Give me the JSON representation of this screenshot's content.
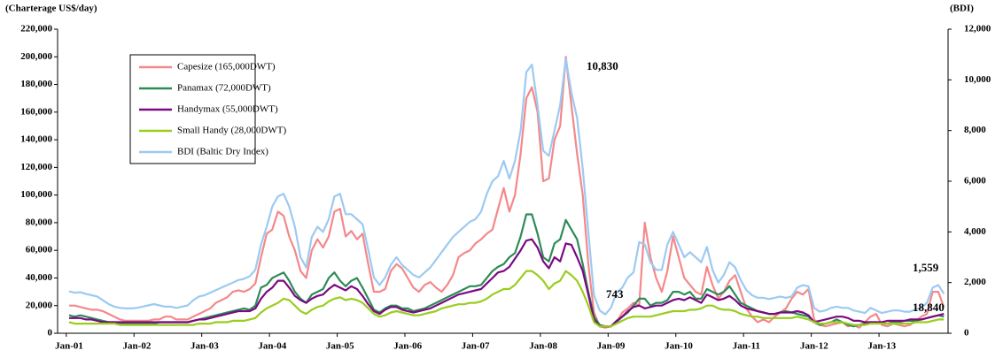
{
  "chart_data": {
    "type": "line",
    "y_axis_label": "(Charterage US$/day)",
    "y2_axis_label": "(BDI)",
    "categories": [
      "Jan-01",
      null,
      null,
      null,
      null,
      null,
      null,
      null,
      null,
      null,
      null,
      null,
      "Jan-02",
      null,
      null,
      null,
      null,
      null,
      null,
      null,
      null,
      null,
      null,
      null,
      "Jan-03",
      null,
      null,
      null,
      null,
      null,
      null,
      null,
      null,
      null,
      null,
      null,
      "Jan-04",
      null,
      null,
      null,
      null,
      null,
      null,
      null,
      null,
      null,
      null,
      null,
      "Jan-05",
      null,
      null,
      null,
      null,
      null,
      null,
      null,
      null,
      null,
      null,
      null,
      "Jan-06",
      null,
      null,
      null,
      null,
      null,
      null,
      null,
      null,
      null,
      null,
      null,
      "Jan-07",
      null,
      null,
      null,
      null,
      null,
      null,
      null,
      null,
      null,
      null,
      null,
      "Jan-08",
      null,
      null,
      null,
      null,
      null,
      null,
      null,
      null,
      null,
      null,
      null,
      "Jan-09",
      null,
      null,
      null,
      null,
      null,
      null,
      null,
      null,
      null,
      null,
      null,
      "Jan-10",
      null,
      null,
      null,
      null,
      null,
      null,
      null,
      null,
      null,
      null,
      null,
      "Jan-11",
      null,
      null,
      null,
      null,
      null,
      null,
      null,
      null,
      null,
      null,
      null,
      "Jan-12",
      null,
      null,
      null,
      null,
      null,
      null,
      null,
      null,
      null,
      null,
      null,
      "Jan-13",
      null,
      null,
      null,
      null,
      null,
      null,
      null,
      null,
      null,
      null,
      null
    ],
    "ylim": [
      0,
      220000
    ],
    "yticks": [
      0,
      {
        "value": 20000,
        "label": "20,000"
      },
      {
        "value": 40000,
        "label": "40,000"
      },
      {
        "value": 60000,
        "label": "60,000"
      },
      {
        "value": 80000,
        "label": "80,000"
      },
      {
        "value": 100000,
        "label": "100,000"
      },
      {
        "value": 120000,
        "label": "120,000"
      },
      {
        "value": 140000,
        "label": "140,000"
      },
      {
        "value": 160000,
        "label": "160,000"
      },
      {
        "value": 180000,
        "label": "180,000"
      },
      {
        "value": 200000,
        "label": "200,000"
      },
      {
        "value": 220000,
        "label": "220,000"
      }
    ],
    "y2lim": [
      0,
      12000
    ],
    "y2ticks": [
      0,
      {
        "value": 2000,
        "label": "2,000"
      },
      {
        "value": 4000,
        "label": "4,000"
      },
      {
        "value": 6000,
        "label": "6,000"
      },
      {
        "value": 8000,
        "label": "8,000"
      },
      {
        "value": 10000,
        "label": "10,000"
      },
      {
        "value": 12000,
        "label": "12,000"
      }
    ],
    "grid": false,
    "legend": "upper-left",
    "series": [
      {
        "name": "Capesize (165,000DWT)",
        "color": "#f4888a",
        "values": [
          20000,
          20000,
          19000,
          18000,
          17000,
          17000,
          16000,
          14000,
          12000,
          10000,
          9000,
          9000,
          9000,
          9000,
          9000,
          10000,
          10000,
          12000,
          12000,
          10000,
          10000,
          10000,
          12000,
          14000,
          16000,
          18000,
          22000,
          24000,
          26000,
          30000,
          31000,
          30000,
          32000,
          36000,
          55000,
          72000,
          75000,
          88000,
          85000,
          70000,
          60000,
          45000,
          40000,
          60000,
          68000,
          62000,
          70000,
          88000,
          90000,
          70000,
          74000,
          68000,
          72000,
          50000,
          30000,
          30000,
          32000,
          45000,
          50000,
          47000,
          40000,
          33000,
          30000,
          35000,
          37000,
          33000,
          30000,
          35000,
          42000,
          55000,
          58000,
          60000,
          65000,
          68000,
          72000,
          75000,
          90000,
          105000,
          88000,
          100000,
          130000,
          170000,
          178000,
          160000,
          110000,
          112000,
          140000,
          150000,
          200000,
          165000,
          130000,
          100000,
          50000,
          15000,
          5000,
          4000,
          5000,
          8000,
          15000,
          18000,
          22000,
          20000,
          80000,
          55000,
          40000,
          30000,
          45000,
          70000,
          55000,
          40000,
          35000,
          30000,
          28000,
          48000,
          35000,
          25000,
          30000,
          38000,
          42000,
          30000,
          18000,
          12000,
          8000,
          10000,
          8000,
          12000,
          15000,
          18000,
          25000,
          30000,
          28000,
          32000,
          10000,
          6000,
          5000,
          6000,
          7000,
          8000,
          5000,
          6000,
          4000,
          8000,
          12000,
          14000,
          6000,
          5000,
          7000,
          6000,
          5000,
          6000,
          9000,
          12000,
          14000,
          30000,
          30000,
          18840
        ]
      },
      {
        "name": "Panamax (72,000DWT)",
        "color": "#2e8b57",
        "values": [
          13000,
          12000,
          13000,
          12000,
          11000,
          10000,
          9000,
          8000,
          8000,
          7000,
          7000,
          7000,
          7000,
          7000,
          7000,
          7000,
          8000,
          8000,
          8000,
          8000,
          8000,
          8000,
          9000,
          10000,
          11000,
          12000,
          13000,
          14000,
          15000,
          16000,
          17000,
          18000,
          17000,
          20000,
          33000,
          35000,
          40000,
          42000,
          44000,
          38000,
          30000,
          25000,
          22000,
          28000,
          30000,
          32000,
          40000,
          44000,
          38000,
          34000,
          38000,
          40000,
          33000,
          25000,
          17000,
          15000,
          18000,
          20000,
          20000,
          18000,
          18000,
          16000,
          17000,
          18000,
          20000,
          22000,
          24000,
          26000,
          28000,
          30000,
          32000,
          34000,
          34000,
          35000,
          40000,
          45000,
          48000,
          50000,
          55000,
          58000,
          70000,
          86000,
          86000,
          72000,
          55000,
          52000,
          65000,
          68000,
          82000,
          75000,
          68000,
          50000,
          30000,
          12000,
          6000,
          5000,
          5000,
          8000,
          12000,
          15000,
          20000,
          25000,
          25000,
          20000,
          22000,
          22000,
          24000,
          30000,
          30000,
          28000,
          30000,
          25000,
          25000,
          32000,
          30000,
          28000,
          30000,
          34000,
          28000,
          22000,
          20000,
          18000,
          16000,
          15000,
          14000,
          14000,
          15000,
          16000,
          15000,
          14000,
          13000,
          12000,
          8000,
          6000,
          7000,
          8000,
          10000,
          8000,
          6000,
          5000,
          6000,
          7000,
          8000,
          8000,
          7000,
          7000,
          8000,
          8000,
          9000,
          9000,
          9000,
          10000,
          11000,
          12000,
          13000,
          12000
        ]
      },
      {
        "name": "Handymax (55,000DWT)",
        "color": "#7b0a82",
        "values": [
          11000,
          11000,
          11000,
          10000,
          10000,
          9000,
          8000,
          8000,
          8000,
          8000,
          8000,
          8000,
          8000,
          8000,
          8000,
          8000,
          8000,
          8000,
          8000,
          8000,
          8000,
          8000,
          9000,
          10000,
          10000,
          11000,
          12000,
          13000,
          14000,
          15000,
          16000,
          16000,
          16000,
          18000,
          25000,
          30000,
          33000,
          38000,
          38000,
          33000,
          27000,
          24000,
          22000,
          25000,
          27000,
          28000,
          32000,
          35000,
          33000,
          31000,
          34000,
          32000,
          27000,
          21000,
          16000,
          14000,
          17000,
          19000,
          19000,
          17000,
          16000,
          15000,
          16000,
          17000,
          18000,
          20000,
          22000,
          24000,
          26000,
          28000,
          29000,
          30000,
          31000,
          32000,
          36000,
          40000,
          44000,
          45000,
          48000,
          54000,
          60000,
          67000,
          68000,
          62000,
          52000,
          47000,
          55000,
          52000,
          65000,
          64000,
          55000,
          45000,
          28000,
          10000,
          5000,
          5000,
          5000,
          9000,
          12000,
          16000,
          19000,
          20000,
          18000,
          19000,
          20000,
          20000,
          22000,
          24000,
          25000,
          24000,
          26000,
          24000,
          22000,
          28000,
          26000,
          24000,
          25000,
          27000,
          24000,
          20000,
          18000,
          17000,
          16000,
          15000,
          14000,
          14000,
          15000,
          15000,
          15000,
          16000,
          15000,
          13000,
          8000,
          9000,
          10000,
          11000,
          12000,
          12000,
          11000,
          9000,
          9000,
          8000,
          8000,
          8000,
          8000,
          9000,
          9000,
          9000,
          9000,
          10000,
          10000,
          10000,
          11000,
          12000,
          13000,
          14000
        ]
      },
      {
        "name": "Small Handy (28,000DWT)",
        "color": "#9acd1e",
        "values": [
          8000,
          7000,
          7000,
          7000,
          7000,
          7000,
          7000,
          7000,
          7000,
          6000,
          6000,
          6000,
          6000,
          6000,
          6000,
          6000,
          6000,
          6000,
          6000,
          6000,
          6000,
          6000,
          6000,
          7000,
          7000,
          7000,
          8000,
          8000,
          8000,
          9000,
          9000,
          9000,
          10000,
          11000,
          15000,
          18000,
          20000,
          22000,
          25000,
          24000,
          20000,
          16000,
          14000,
          17000,
          19000,
          20000,
          23000,
          25000,
          26000,
          24000,
          25000,
          24000,
          22000,
          18000,
          14000,
          12000,
          13000,
          15000,
          16000,
          15000,
          14000,
          13000,
          13000,
          14000,
          15000,
          16000,
          18000,
          19000,
          20000,
          21000,
          21000,
          22000,
          22000,
          23000,
          25000,
          28000,
          30000,
          32000,
          32000,
          35000,
          40000,
          45000,
          45000,
          42000,
          38000,
          32000,
          36000,
          38000,
          45000,
          42000,
          38000,
          30000,
          20000,
          8000,
          5000,
          5000,
          5000,
          7000,
          9000,
          11000,
          12000,
          12000,
          12000,
          12000,
          13000,
          14000,
          15000,
          16000,
          16000,
          16000,
          17000,
          17000,
          18000,
          20000,
          20000,
          18000,
          17000,
          17000,
          16000,
          14000,
          13000,
          12000,
          12000,
          11000,
          11000,
          11000,
          11000,
          11000,
          11000,
          12000,
          11000,
          10000,
          8000,
          7000,
          7000,
          8000,
          8000,
          8000,
          7000,
          6000,
          6000,
          6000,
          7000,
          7000,
          7000,
          7000,
          7000,
          7000,
          7000,
          7000,
          8000,
          8000,
          8000,
          9000,
          10000,
          10000
        ]
      },
      {
        "name": "BDI (Baltic Dry Index)",
        "color": "#9ccaf2",
        "axis": "y2",
        "values": [
          1650,
          1600,
          1620,
          1550,
          1500,
          1450,
          1300,
          1150,
          1050,
          1000,
          980,
          980,
          1000,
          1050,
          1100,
          1150,
          1100,
          1050,
          1050,
          1000,
          1050,
          1100,
          1300,
          1450,
          1500,
          1600,
          1700,
          1800,
          1900,
          2000,
          2100,
          2150,
          2250,
          2500,
          3500,
          4200,
          5000,
          5400,
          5500,
          5000,
          4200,
          3000,
          2600,
          3800,
          4200,
          4000,
          4500,
          5400,
          5500,
          4700,
          4700,
          4500,
          4300,
          3300,
          2200,
          1900,
          2200,
          2700,
          3000,
          2700,
          2500,
          2300,
          2200,
          2400,
          2600,
          2900,
          3200,
          3500,
          3800,
          4000,
          4200,
          4400,
          4500,
          4800,
          5500,
          6000,
          6200,
          6800,
          6100,
          6800,
          8000,
          10300,
          10600,
          9000,
          7200,
          7000,
          8000,
          9000,
          10830,
          9500,
          8500,
          6500,
          4000,
          1500,
          900,
          743,
          1000,
          1600,
          1800,
          2200,
          2400,
          3600,
          3500,
          2800,
          2500,
          2500,
          3500,
          4000,
          3500,
          3000,
          3200,
          3000,
          2800,
          3400,
          2500,
          2000,
          2300,
          2800,
          2600,
          2100,
          1700,
          1500,
          1400,
          1400,
          1350,
          1400,
          1450,
          1400,
          1450,
          1800,
          1900,
          1850,
          1000,
          850,
          900,
          1000,
          1050,
          1000,
          1000,
          900,
          850,
          800,
          1000,
          900,
          800,
          850,
          900,
          900,
          850,
          850,
          950,
          1000,
          1200,
          1800,
          1900,
          1559
        ]
      }
    ],
    "annotations": [
      {
        "text": "10,830",
        "color": "#3a6fd0"
      },
      {
        "text": "743",
        "color": "#3a6fd0"
      },
      {
        "text": "1,559",
        "color": "#9ccaf2"
      },
      {
        "text": "18,840",
        "color": "#f4888a"
      }
    ]
  }
}
